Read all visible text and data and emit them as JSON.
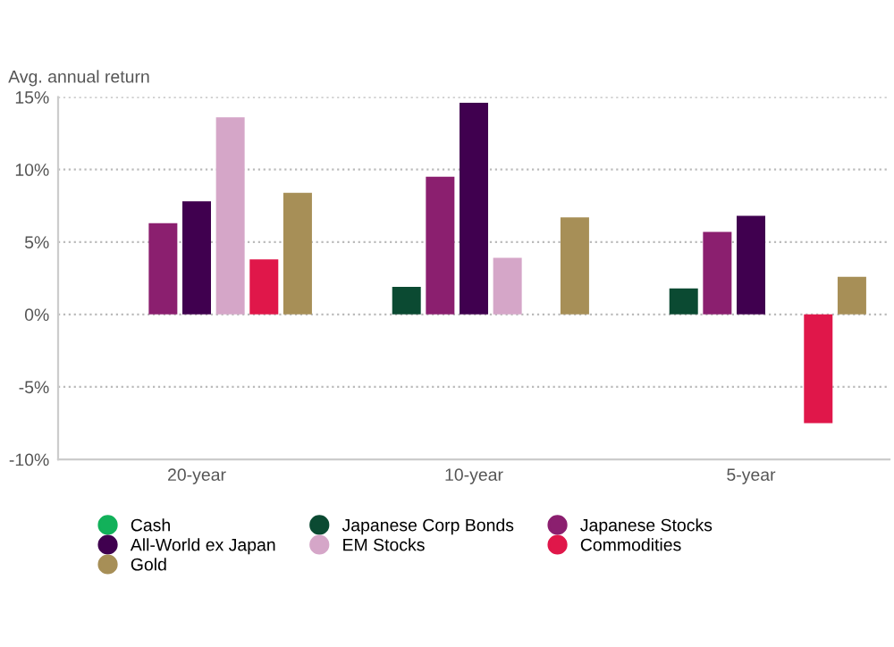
{
  "chart_data": {
    "type": "bar",
    "ylabel": "Avg. annual return",
    "categories": [
      "20-year",
      "10-year",
      "5-year"
    ],
    "series": [
      {
        "name": "Cash",
        "color": "#12b15a",
        "values": [
          null,
          null,
          null
        ]
      },
      {
        "name": "Japanese Corp Bonds",
        "color": "#0b4a32",
        "values": [
          null,
          1.9,
          1.8
        ]
      },
      {
        "name": "Japanese Stocks",
        "color": "#8b1f6f",
        "values": [
          6.3,
          9.5,
          5.7
        ]
      },
      {
        "name": "All-World ex Japan",
        "color": "#40004f",
        "values": [
          7.8,
          14.6,
          6.8
        ]
      },
      {
        "name": "EM Stocks",
        "color": "#d5a6c8",
        "values": [
          13.6,
          3.9,
          null
        ]
      },
      {
        "name": "Commodities",
        "color": "#e0174a",
        "values": [
          3.8,
          null,
          -7.5
        ]
      },
      {
        "name": "Gold",
        "color": "#a78f57",
        "values": [
          8.4,
          6.7,
          2.6
        ]
      }
    ],
    "ylim": [
      -10,
      15
    ],
    "yticks": [
      {
        "value": -10,
        "label": "-10%"
      },
      {
        "value": -5,
        "label": "-5%"
      },
      {
        "value": 0,
        "label": "0%"
      },
      {
        "value": 5,
        "label": "5%"
      },
      {
        "value": 10,
        "label": "10%"
      },
      {
        "value": 15,
        "label": "15%"
      }
    ],
    "grid": "y",
    "legend": "bottom",
    "marker": "circle"
  }
}
